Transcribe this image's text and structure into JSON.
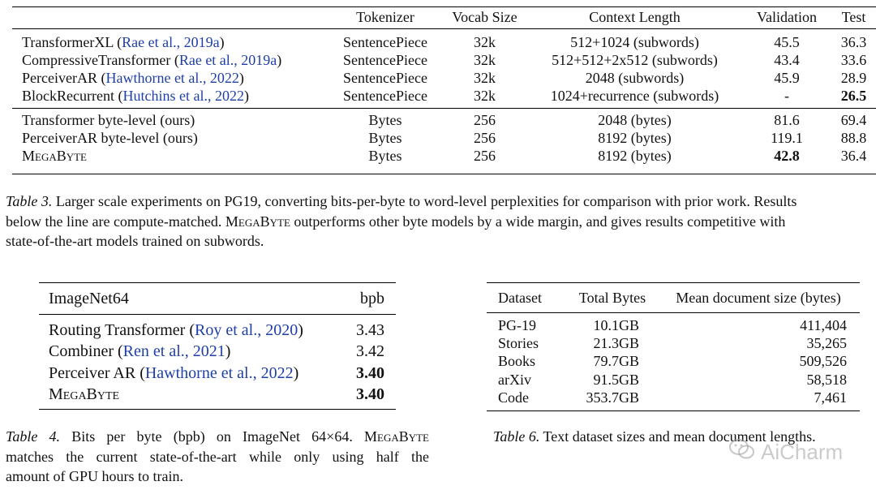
{
  "table3": {
    "headers": [
      "Tokenizer",
      "Vocab Size",
      "Context Length",
      "Validation",
      "Test"
    ],
    "rows_top": [
      {
        "model": "TransformerXL ",
        "cite": "Rae et al., 2019a",
        "cite_open": "(",
        "cite_close": ")",
        "tokenizer": "SentencePiece",
        "vocab": "32k",
        "context": "512+1024 (subwords)",
        "validation": "45.5",
        "test": "36.3"
      },
      {
        "model": "CompressiveTransformer ",
        "cite": "Rae et al., 2019a",
        "cite_open": "(",
        "cite_close": ")",
        "tokenizer": "SentencePiece",
        "vocab": "32k",
        "context": "512+512+2x512 (subwords)",
        "validation": "43.4",
        "test": "33.6"
      },
      {
        "model": "PerceiverAR ",
        "cite": "Hawthorne et al., 2022",
        "cite_open": "(",
        "cite_close": ")",
        "tokenizer": "SentencePiece",
        "vocab": "32k",
        "context": "2048 (subwords)",
        "validation": "45.9",
        "test": "28.9"
      },
      {
        "model": "BlockRecurrent ",
        "cite": "Hutchins et al., 2022",
        "cite_open": "(",
        "cite_close": ")",
        "tokenizer": "SentencePiece",
        "vocab": "32k",
        "context": "1024+recurrence (subwords)",
        "validation": "-",
        "test": "26.5"
      }
    ],
    "rows_bottom": [
      {
        "model": "Transformer byte-level (ours)",
        "tokenizer": "Bytes",
        "vocab": "256",
        "context": "2048 (bytes)",
        "validation": "81.6",
        "test": "69.4"
      },
      {
        "model": "PerceiverAR byte-level (ours)",
        "tokenizer": "Bytes",
        "vocab": "256",
        "context": "8192 (bytes)",
        "validation": "119.1",
        "test": "88.8"
      },
      {
        "model": "MegaByte",
        "tokenizer": "Bytes",
        "vocab": "256",
        "context": "8192 (bytes)",
        "validation": "42.8",
        "test": "36.4"
      }
    ],
    "caption_label": "Table 3.",
    "caption_line1": " Larger scale experiments on PG19, converting bits-per-byte to word-level perplexities for comparison with prior work. Results",
    "caption_line2a": "below the line are compute-matched. ",
    "caption_sc": "MegaByte",
    "caption_line2b": " outperforms other byte models by a wide margin, and gives results competitive with",
    "caption_line3": "state-of-the-art models trained on subwords."
  },
  "table4": {
    "headers": [
      "ImageNet64",
      "bpb"
    ],
    "rows": [
      {
        "model": "Routing Transformer ",
        "cite": "Roy et al., 2020",
        "bpb": "3.43"
      },
      {
        "model": "Combiner ",
        "cite": "Ren et al., 2021",
        "bpb": "3.42"
      },
      {
        "model": "Perceiver AR ",
        "cite": "Hawthorne et al., 2022",
        "bpb": "3.40"
      },
      {
        "model": "MegaByte",
        "bpb": "3.40"
      }
    ],
    "caption_label": "Table 4.",
    "caption_line1a": " Bits per byte (bpb) on ImageNet 64×64.  ",
    "caption_sc": "MegaByte",
    "caption_line2": "matches the current state-of-the-art while only using half the",
    "caption_line3": "amount of GPU hours to train."
  },
  "table6": {
    "headers": [
      "Dataset",
      "Total Bytes",
      "Mean document size (bytes)"
    ],
    "rows": [
      {
        "dataset": "PG-19",
        "bytes": "10.1GB",
        "mean": "411,404"
      },
      {
        "dataset": "Stories",
        "bytes": "21.3GB",
        "mean": "35,265"
      },
      {
        "dataset": "Books",
        "bytes": "79.7GB",
        "mean": "509,526"
      },
      {
        "dataset": "arXiv",
        "bytes": "91.5GB",
        "mean": "58,518"
      },
      {
        "dataset": "Code",
        "bytes": "353.7GB",
        "mean": "7,461"
      }
    ],
    "caption_label": "Table 6.",
    "caption_text": " Text dataset sizes and mean document lengths."
  },
  "watermark": {
    "text": "AiCharm",
    "icon": "wechat-icon"
  }
}
